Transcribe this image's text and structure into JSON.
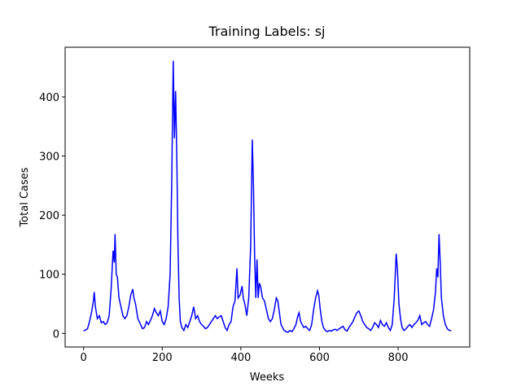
{
  "chart_data": {
    "type": "line",
    "title": "Training Labels: sj",
    "x_label": "Weeks",
    "y_label": "Total Cases",
    "x": [
      0,
      5,
      10,
      15,
      20,
      25,
      27,
      30,
      35,
      40,
      45,
      50,
      55,
      60,
      65,
      70,
      75,
      78,
      80,
      83,
      86,
      90,
      95,
      100,
      105,
      110,
      115,
      120,
      125,
      128,
      132,
      138,
      145,
      150,
      155,
      160,
      165,
      170,
      175,
      180,
      185,
      190,
      195,
      200,
      205,
      210,
      215,
      220,
      224,
      228,
      231,
      234,
      237,
      240,
      243,
      246,
      250,
      255,
      260,
      265,
      270,
      275,
      280,
      285,
      290,
      295,
      300,
      305,
      310,
      315,
      320,
      325,
      330,
      335,
      340,
      345,
      350,
      355,
      360,
      365,
      370,
      375,
      380,
      385,
      390,
      393,
      398,
      403,
      406,
      410,
      415,
      420,
      425,
      429,
      432,
      435,
      438,
      441,
      444,
      447,
      450,
      455,
      460,
      465,
      470,
      475,
      480,
      485,
      490,
      494,
      498,
      502,
      506,
      510,
      515,
      520,
      525,
      530,
      535,
      540,
      545,
      548,
      552,
      556,
      560,
      565,
      570,
      575,
      580,
      585,
      590,
      595,
      598,
      602,
      606,
      610,
      615,
      620,
      625,
      630,
      635,
      640,
      645,
      650,
      655,
      660,
      665,
      670,
      675,
      680,
      685,
      690,
      695,
      700,
      705,
      710,
      715,
      720,
      725,
      730,
      735,
      740,
      745,
      750,
      755,
      760,
      765,
      770,
      775,
      780,
      785,
      790,
      795,
      798,
      802,
      806,
      810,
      815,
      820,
      825,
      830,
      835,
      840,
      845,
      850,
      855,
      860,
      865,
      870,
      875,
      880,
      885,
      890,
      895,
      898,
      901,
      904,
      907,
      910,
      915,
      920,
      925,
      930,
      935
    ],
    "series": [
      {
        "name": "Total Cases",
        "color": "#0000ff",
        "values": [
          4,
          6,
          8,
          20,
          35,
          55,
          70,
          45,
          25,
          30,
          18,
          20,
          15,
          18,
          30,
          75,
          140,
          120,
          168,
          100,
          95,
          60,
          45,
          30,
          25,
          30,
          45,
          65,
          75,
          60,
          50,
          25,
          15,
          8,
          10,
          20,
          15,
          22,
          30,
          42,
          35,
          30,
          38,
          20,
          15,
          25,
          45,
          100,
          250,
          461,
          330,
          410,
          300,
          150,
          60,
          20,
          10,
          5,
          15,
          10,
          20,
          30,
          45,
          25,
          30,
          20,
          15,
          12,
          8,
          10,
          15,
          20,
          25,
          30,
          25,
          28,
          30,
          20,
          10,
          5,
          15,
          20,
          45,
          55,
          110,
          60,
          65,
          80,
          60,
          50,
          30,
          60,
          150,
          328,
          250,
          130,
          60,
          125,
          60,
          85,
          80,
          60,
          55,
          40,
          25,
          20,
          25,
          40,
          60,
          55,
          35,
          15,
          10,
          5,
          3,
          2,
          5,
          3,
          8,
          15,
          30,
          35,
          20,
          15,
          10,
          12,
          8,
          5,
          15,
          40,
          60,
          72,
          65,
          40,
          20,
          10,
          5,
          3,
          5,
          4,
          6,
          7,
          5,
          8,
          10,
          12,
          6,
          4,
          10,
          15,
          20,
          28,
          35,
          38,
          30,
          20,
          15,
          10,
          8,
          5,
          10,
          18,
          15,
          10,
          22,
          15,
          12,
          18,
          10,
          5,
          15,
          60,
          135,
          110,
          50,
          25,
          10,
          5,
          8,
          12,
          15,
          10,
          15,
          18,
          22,
          30,
          15,
          18,
          20,
          15,
          12,
          25,
          40,
          70,
          110,
          95,
          168,
          120,
          60,
          30,
          15,
          8,
          5,
          5
        ]
      }
    ],
    "xlim": [
      -47,
      982
    ],
    "ylim": [
      -23,
      484
    ],
    "xticks": [
      0,
      200,
      400,
      600,
      800
    ],
    "yticks": [
      0,
      100,
      200,
      300,
      400
    ]
  }
}
